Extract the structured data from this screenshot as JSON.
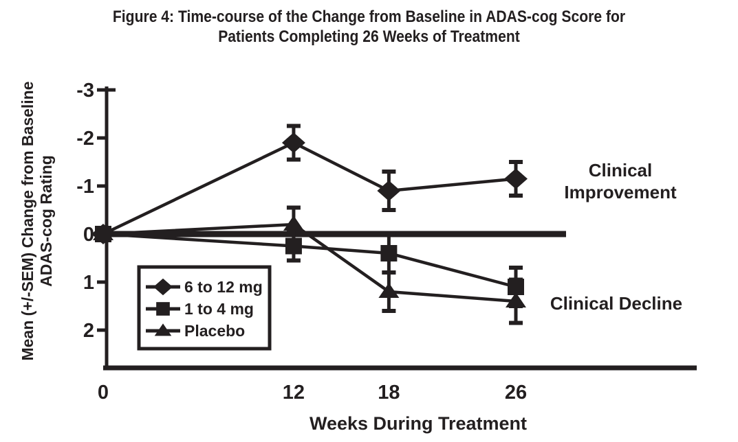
{
  "chart_data": {
    "type": "line",
    "title": "Figure 4: Time-course of the Change from Baseline in ADAS-cog Score for Patients Completing 26 Weeks of Treatment",
    "title_line1": "Figure 4: Time-course of the Change from Baseline in ADAS-cog Score for",
    "title_line2": "Patients Completing 26 Weeks of Treatment",
    "xlabel": "Weeks During Treatment",
    "ylabel": "Mean (+/-SEM) Change from Baseline ADAS-cog Rating",
    "ylabel_line1": "Mean (+/-SEM) Change from Baseline",
    "ylabel_line2": "ADAS-cog Rating",
    "x": [
      0,
      12,
      18,
      26
    ],
    "x_tick_labels": [
      "0",
      "12",
      "18",
      "26"
    ],
    "y_ticks": [
      -3,
      -2,
      -1,
      0,
      1,
      2
    ],
    "y_tick_labels": [
      "-3",
      "-2",
      "-1",
      "0",
      "1",
      "2"
    ],
    "y_axis_inverted": true,
    "ylim": [
      -3,
      2.6
    ],
    "zero_reference_line": true,
    "grid": false,
    "legend_position": "lower-left",
    "series": [
      {
        "name": "6 to 12 mg",
        "marker": "diamond",
        "values": [
          0,
          -1.9,
          -0.9,
          -1.15
        ],
        "sem": [
          0,
          0.35,
          0.4,
          0.35
        ]
      },
      {
        "name": "1 to 4 mg",
        "marker": "square",
        "values": [
          0,
          0.25,
          0.4,
          1.1
        ],
        "sem": [
          0,
          0.3,
          0.4,
          0.4
        ]
      },
      {
        "name": "Placebo",
        "marker": "triangle",
        "values": [
          0,
          -0.2,
          1.2,
          1.4
        ],
        "sem": [
          0,
          0.35,
          0.4,
          0.45
        ]
      }
    ],
    "annotations": {
      "improvement_line1": "Clinical",
      "improvement_line2": "Improvement",
      "decline": "Clinical Decline"
    },
    "ink_color": "#231f20"
  }
}
